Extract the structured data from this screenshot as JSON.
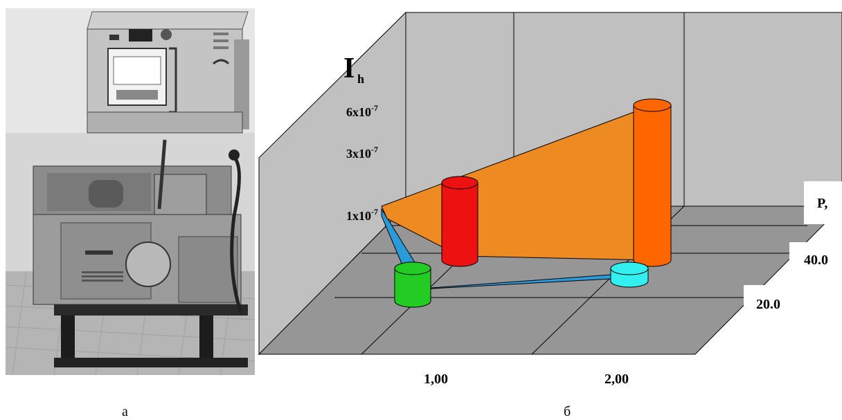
{
  "panel_a": {
    "caption": "а",
    "image": "photo of a friction testing machine with a recording instrument cabinet mounted on the wall above it"
  },
  "panel_b": {
    "caption": "б"
  },
  "chart_data": {
    "type": "bar",
    "style": "3d-cylinder",
    "ylabel": "I",
    "ylabel_subscript": "h",
    "y_ticks": [
      {
        "value": 1e-07,
        "base": "1x10",
        "exp": "-7"
      },
      {
        "value": 3e-07,
        "base": "3x10",
        "exp": "-7"
      },
      {
        "value": 6e-07,
        "base": "6x10",
        "exp": "-7"
      }
    ],
    "x_categories": [
      "1,00",
      "2,00"
    ],
    "depth_label": "P,",
    "depth_categories": [
      "20.0",
      "40.0"
    ],
    "grid": true,
    "series": [
      {
        "values": [
          1e-07,
          1.2e-08
        ],
        "colors": [
          "#22cc22",
          "#33f0f0"
        ],
        "ribbon": "#2a9ad8"
      },
      {
        "values": [
          3e-07,
          6e-07
        ],
        "colors": [
          "#ee1111",
          "#ff6600"
        ],
        "ribbon": "#ee8a22"
      }
    ],
    "wall_color": "#c0c0c0",
    "floor_color": "#969696"
  }
}
